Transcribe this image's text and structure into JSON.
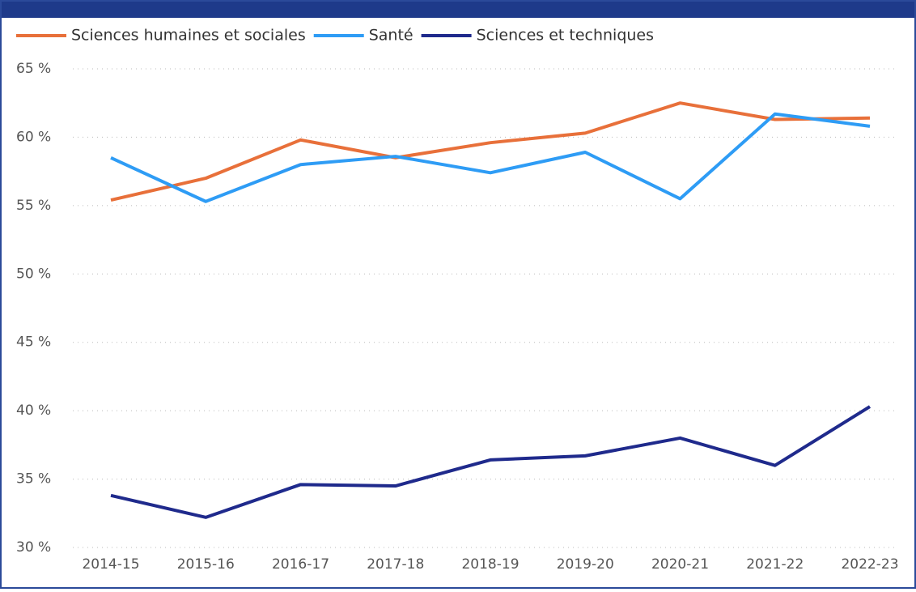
{
  "chart_data": {
    "type": "line",
    "categories": [
      "2014-15",
      "2015-16",
      "2016-17",
      "2017-18",
      "2018-19",
      "2019-20",
      "2020-21",
      "2021-22",
      "2022-23"
    ],
    "series": [
      {
        "name": "Sciences humaines et sociales",
        "color": "#e8703a",
        "values": [
          55.4,
          57.0,
          59.8,
          58.5,
          59.6,
          60.3,
          62.5,
          61.3,
          61.4
        ]
      },
      {
        "name": "Santé",
        "color": "#2e9cf5",
        "values": [
          58.5,
          55.3,
          58.0,
          58.6,
          57.4,
          58.9,
          55.5,
          61.7,
          60.8
        ]
      },
      {
        "name": "Sciences et techniques",
        "color": "#1f2a8c",
        "values": [
          33.8,
          32.2,
          34.6,
          34.5,
          36.4,
          36.7,
          38.0,
          36.0,
          40.3
        ]
      }
    ],
    "ylim": [
      30,
      65
    ],
    "yticks": [
      {
        "value": 30,
        "label": "30 %"
      },
      {
        "value": 35,
        "label": "35 %"
      },
      {
        "value": 40,
        "label": "40 %"
      },
      {
        "value": 45,
        "label": "45 %"
      },
      {
        "value": 50,
        "label": "50 %"
      },
      {
        "value": 55,
        "label": "55 %"
      },
      {
        "value": 60,
        "label": "60 %"
      },
      {
        "value": 65,
        "label": "65 %"
      }
    ],
    "grid": true,
    "legend": "top-left"
  }
}
